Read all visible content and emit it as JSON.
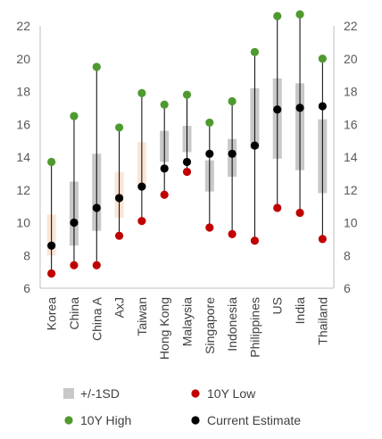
{
  "chart_data": {
    "type": "range",
    "categories": [
      "Korea",
      "China",
      "China A",
      "AxJ",
      "Taiwan",
      "Hong Kong",
      "Malaysia",
      "Singapore",
      "Indonesia",
      "Philippines",
      "US",
      "India",
      "Thailand"
    ],
    "ylim": [
      6,
      22
    ],
    "yticks": [
      6,
      8,
      10,
      12,
      14,
      16,
      18,
      20,
      22
    ],
    "grid": false,
    "legend_position": "bottom",
    "series": [
      {
        "name": "+/-1SD",
        "kind": "band",
        "low": [
          8.0,
          8.6,
          9.5,
          10.3,
          12.2,
          13.7,
          14.3,
          11.9,
          12.8,
          14.5,
          13.9,
          13.2,
          11.8
        ],
        "high": [
          10.5,
          12.5,
          14.2,
          13.1,
          14.9,
          15.6,
          15.9,
          13.8,
          15.1,
          18.2,
          18.8,
          18.5,
          16.3
        ],
        "color": "#c8c8c8",
        "alt_color": "#fbe5d6",
        "alt_categories": [
          "Korea",
          "AxJ",
          "Taiwan"
        ]
      },
      {
        "name": "10Y Low",
        "kind": "point",
        "values": [
          6.9,
          7.4,
          7.4,
          9.2,
          10.1,
          11.7,
          13.1,
          9.7,
          9.3,
          8.9,
          10.9,
          10.6,
          9.0
        ],
        "color": "#c00000"
      },
      {
        "name": "10Y High",
        "kind": "point",
        "values": [
          13.7,
          16.5,
          19.5,
          15.8,
          17.9,
          17.2,
          17.8,
          16.1,
          17.4,
          20.4,
          22.6,
          22.7,
          20.0
        ],
        "color": "#4e9a2f"
      },
      {
        "name": "Current Estimate",
        "kind": "point",
        "values": [
          8.6,
          10.0,
          10.9,
          11.5,
          12.2,
          13.3,
          13.7,
          14.2,
          14.2,
          14.7,
          16.9,
          17.0,
          17.1
        ],
        "color": "#000000"
      }
    ],
    "line_color": "#000000"
  }
}
